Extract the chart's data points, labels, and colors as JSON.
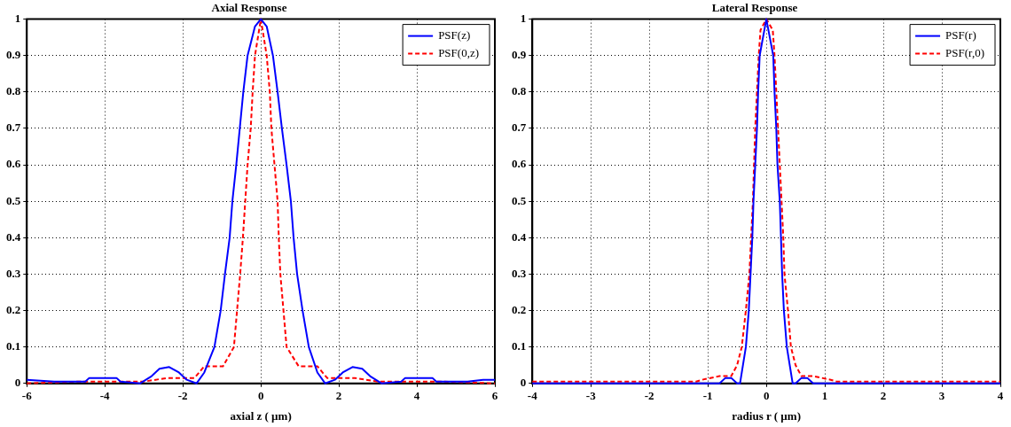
{
  "chart_data": [
    {
      "type": "line",
      "title": "Axial Response",
      "xlabel": "axial z ( µm)",
      "xlim": [
        -6,
        6
      ],
      "xticks": [
        -6,
        -4,
        -2,
        0,
        2,
        4,
        6
      ],
      "ylim": [
        0,
        1
      ],
      "yticks": [
        0,
        0.1,
        0.2,
        0.3,
        0.4,
        0.5,
        0.6,
        0.7,
        0.8,
        0.9,
        1
      ],
      "grid": true,
      "legend": "top right",
      "line_style": "solid",
      "marker": "none",
      "series": [
        {
          "name": "PSF(z)",
          "color": "#0000ff",
          "x": [
            -6,
            -5.3,
            -4.5,
            -4.4,
            -3.7,
            -3.6,
            -3.1,
            -2.8,
            -2.6,
            -2.35,
            -2.1,
            -1.9,
            -1.65,
            -1.45,
            -1.19,
            -1.03,
            -0.92,
            -0.8,
            -0.73,
            -0.63,
            -0.54,
            -0.45,
            -0.34,
            -0.15,
            0,
            0.15,
            0.31,
            0.43,
            0.54,
            0.66,
            0.77,
            0.84,
            0.93,
            1.07,
            1.23,
            1.45,
            1.65,
            1.9,
            2.1,
            2.35,
            2.6,
            2.8,
            3.1,
            3.6,
            3.7,
            4.4,
            4.5,
            5.3,
            5.7,
            6
          ],
          "values": [
            0.01,
            0.005,
            0.005,
            0.015,
            0.015,
            0.005,
            0,
            0.02,
            0.04,
            0.045,
            0.03,
            0.01,
            0,
            0.03,
            0.1,
            0.2,
            0.3,
            0.4,
            0.5,
            0.6,
            0.7,
            0.8,
            0.9,
            0.98,
            1,
            0.98,
            0.9,
            0.8,
            0.7,
            0.6,
            0.5,
            0.4,
            0.3,
            0.2,
            0.1,
            0.03,
            0,
            0.01,
            0.03,
            0.045,
            0.04,
            0.02,
            0,
            0.005,
            0.015,
            0.015,
            0.005,
            0.005,
            0.01,
            0.01
          ]
        },
        {
          "name": "PSF(0,z)",
          "color": "#ff0000",
          "line_style": "dashed",
          "x": [
            -6,
            -4.7,
            -3,
            -2.4,
            -1.7,
            -1.45,
            -0.97,
            -0.69,
            -0.61,
            -0.53,
            -0.46,
            -0.4,
            -0.34,
            -0.26,
            -0.21,
            -0.15,
            0,
            0.15,
            0.23,
            0.27,
            0.35,
            0.43,
            0.46,
            0.5,
            0.58,
            0.66,
            0.97,
            1.45,
            1.7,
            2.4,
            3,
            4.7,
            6
          ],
          "values": [
            0,
            0.005,
            0.005,
            0.015,
            0.015,
            0.047,
            0.047,
            0.1,
            0.2,
            0.3,
            0.4,
            0.5,
            0.6,
            0.7,
            0.8,
            0.9,
            1,
            0.9,
            0.8,
            0.7,
            0.6,
            0.5,
            0.4,
            0.3,
            0.2,
            0.1,
            0.047,
            0.047,
            0.015,
            0.015,
            0.005,
            0.005,
            0
          ]
        }
      ]
    },
    {
      "type": "line",
      "title": "Lateral Response",
      "xlabel": "radius r ( µm)",
      "xlim": [
        -4,
        4
      ],
      "xticks": [
        -4,
        -3,
        -2,
        -1,
        0,
        1,
        2,
        3,
        4
      ],
      "ylim": [
        0,
        1
      ],
      "yticks": [
        0,
        0.1,
        0.2,
        0.3,
        0.4,
        0.5,
        0.6,
        0.7,
        0.8,
        0.9,
        1
      ],
      "grid": true,
      "legend": "top right",
      "line_style": "solid",
      "marker": "none",
      "series": [
        {
          "name": "PSF(r)",
          "color": "#0000ff",
          "x": [
            -4,
            -0.9,
            -0.8,
            -0.7,
            -0.6,
            -0.5,
            -0.45,
            -0.35,
            -0.3,
            -0.27,
            -0.24,
            -0.22,
            -0.19,
            -0.16,
            -0.14,
            -0.114,
            0,
            0.118,
            0.14,
            0.17,
            0.19,
            0.23,
            0.25,
            0.27,
            0.3,
            0.35,
            0.45,
            0.5,
            0.6,
            0.7,
            0.8,
            0.9,
            4
          ],
          "values": [
            0,
            0,
            0,
            0.015,
            0.015,
            0,
            0,
            0.1,
            0.2,
            0.3,
            0.4,
            0.5,
            0.6,
            0.7,
            0.8,
            0.9,
            1,
            0.9,
            0.8,
            0.7,
            0.6,
            0.5,
            0.4,
            0.3,
            0.2,
            0.1,
            0,
            0,
            0.015,
            0.015,
            0,
            0,
            0
          ]
        },
        {
          "name": "PSF(r,0)",
          "color": "#ff0000",
          "line_style": "dashed",
          "x": [
            -4,
            -1.2,
            -1.1,
            -0.8,
            -0.6,
            -0.5,
            -0.42,
            -0.35,
            -0.29,
            -0.26,
            -0.23,
            -0.21,
            -0.19,
            -0.16,
            -0.13,
            -0.1,
            0,
            0.11,
            0.14,
            0.17,
            0.2,
            0.23,
            0.26,
            0.29,
            0.31,
            0.37,
            0.42,
            0.5,
            0.6,
            0.8,
            1.1,
            1.2,
            4
          ],
          "values": [
            0.005,
            0.005,
            0.01,
            0.02,
            0.02,
            0.05,
            0.1,
            0.2,
            0.3,
            0.4,
            0.5,
            0.6,
            0.7,
            0.8,
            0.9,
            0.97,
            1,
            0.97,
            0.9,
            0.8,
            0.7,
            0.6,
            0.5,
            0.4,
            0.3,
            0.2,
            0.1,
            0.05,
            0.02,
            0.02,
            0.01,
            0.005,
            0.005
          ]
        }
      ]
    }
  ]
}
